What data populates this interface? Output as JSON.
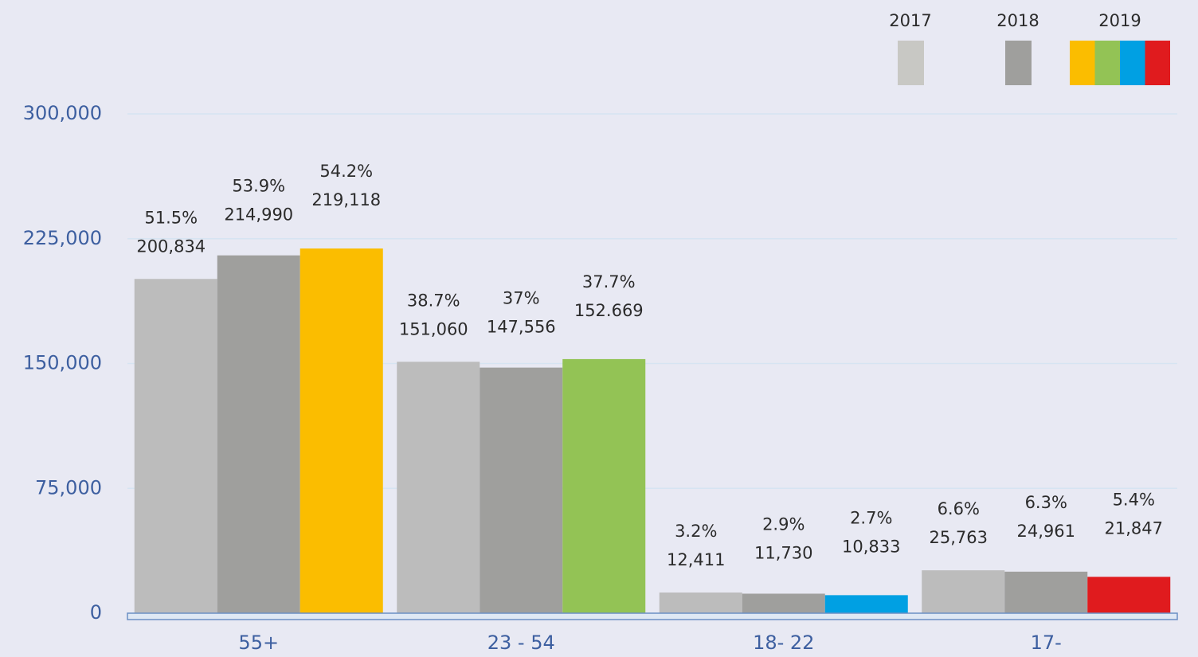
{
  "chart_data": {
    "type": "bar",
    "categories": [
      "55+",
      "23 - 54",
      "18- 22",
      "17-"
    ],
    "series": [
      {
        "name": "2017",
        "color": "#bcbcbc",
        "legend_color": "#c8c8c4",
        "values": [
          200834,
          151060,
          12411,
          25763
        ],
        "value_labels": [
          "200,834",
          "151,060",
          "12,411",
          "25,763"
        ],
        "shares": [
          51.5,
          38.7,
          3.2,
          6.6
        ],
        "share_labels": [
          "51.5%",
          "38.7%",
          "3.2%",
          "6.6%"
        ]
      },
      {
        "name": "2018",
        "color": "#9f9f9d",
        "legend_color": "#9f9f9d",
        "values": [
          214990,
          147556,
          11730,
          24961
        ],
        "value_labels": [
          "214,990",
          "147,556",
          "11,730",
          "24,961"
        ],
        "shares": [
          53.9,
          37,
          2.9,
          6.3
        ],
        "share_labels": [
          "53.9%",
          "37%",
          "2.9%",
          "6.3%"
        ]
      },
      {
        "name": "2019",
        "colors": [
          "#fbbd00",
          "#93c355",
          "#00a0e3",
          "#e01b1e"
        ],
        "values": [
          219118,
          152669,
          10833,
          21847
        ],
        "value_labels": [
          "219,118",
          "152.669",
          "10,833",
          "21,847"
        ],
        "shares": [
          54.2,
          37.7,
          2.7,
          5.4
        ],
        "share_labels": [
          "54.2%",
          "37.7%",
          "2.7%",
          "5.4%"
        ]
      }
    ],
    "ylim": [
      0,
      300000
    ],
    "yticks": [
      0,
      {
        "value": 75000,
        "label": "75,000"
      },
      {
        "value": 150000,
        "label": "150,000"
      },
      {
        "value": 225000,
        "label": "225,000"
      },
      {
        "value": 300000,
        "label": "300,000"
      }
    ],
    "grid": true
  }
}
